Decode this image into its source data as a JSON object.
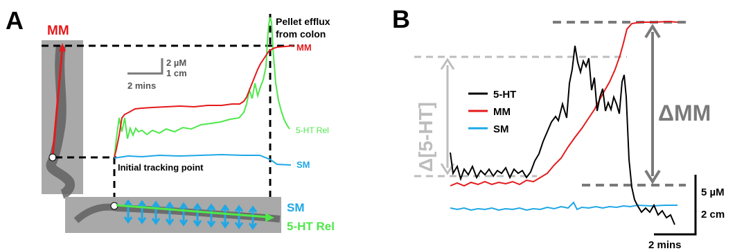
{
  "panel_a": {
    "letter": "A",
    "mm_title": "MM",
    "pellet_note_line1": "Pellet efflux",
    "pellet_note_line2": "from colon",
    "scale_conc": "2 µM",
    "scale_dist": "1 cm",
    "scale_time": "2 mins",
    "trace_mm": "MM",
    "trace_5ht_rel": "5-HT Rel",
    "trace_sm": "SM",
    "initial_tracking_point": "Initial tracking point",
    "bottom_sm": "SM",
    "bottom_5ht_rel": "5-HT Rel"
  },
  "panel_b": {
    "letter": "B",
    "legend": [
      "5-HT",
      "MM",
      "SM"
    ],
    "delta_5ht": "Δ[5-HT]",
    "delta_mm": "ΔMM",
    "scale_conc": "5 µM",
    "scale_dist": "2 cm",
    "scale_time": "2 mins"
  },
  "colors": {
    "mm": "#e41a1c",
    "sm": "#1ea8e6",
    "ht_rel": "#4ee84a",
    "ht": "#000000",
    "gray_dark": "#7a7a7a",
    "gray_light": "#bdbdbd"
  }
}
